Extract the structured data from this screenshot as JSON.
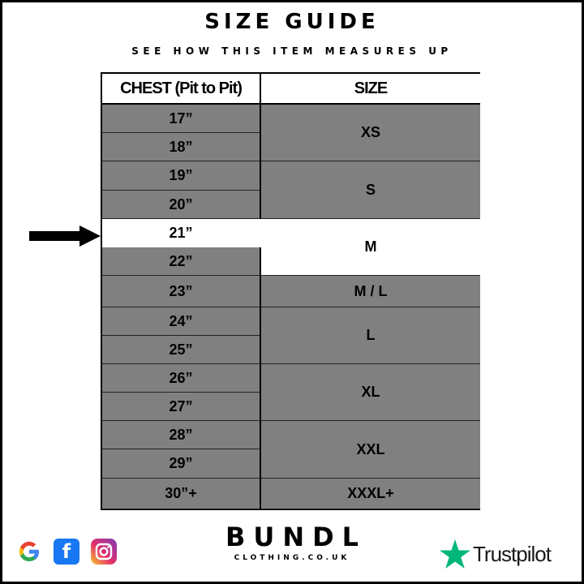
{
  "title": "SIZE GUIDE",
  "subtitle": "SEE HOW THIS ITEM MEASURES UP",
  "table": {
    "headers": [
      "CHEST (Pit to Pit)",
      "SIZE"
    ],
    "chest": [
      "17”",
      "18”",
      "19”",
      "20”",
      "21”",
      "22”",
      "23”",
      "24”",
      "25”",
      "26”",
      "27”",
      "28”",
      "29”",
      "30”+"
    ],
    "sizes": [
      {
        "label": "XS",
        "rows": [
          0,
          1
        ]
      },
      {
        "label": "S",
        "rows": [
          2,
          3
        ]
      },
      {
        "label": "M",
        "rows": [
          4,
          5
        ]
      },
      {
        "label": "M / L",
        "rows": [
          6,
          6
        ]
      },
      {
        "label": "L",
        "rows": [
          7,
          8
        ]
      },
      {
        "label": "XL",
        "rows": [
          9,
          10
        ]
      },
      {
        "label": "XXL",
        "rows": [
          11,
          12
        ]
      },
      {
        "label": "XXXL+",
        "rows": [
          13,
          13
        ]
      }
    ],
    "highlighted_chest": "21”",
    "highlighted_size": "M"
  },
  "colors": {
    "row_fill": "#808080",
    "highlight": "#ffffff",
    "trustpilot_star": "#00b67a",
    "facebook": "#1877f2"
  },
  "footer": {
    "brand": "BUNDL",
    "brand_sub": "CLOTHING.CO.UK",
    "social_icons": [
      "google-icon",
      "facebook-icon",
      "instagram-icon"
    ],
    "trustpilot": "Trustpilot"
  }
}
